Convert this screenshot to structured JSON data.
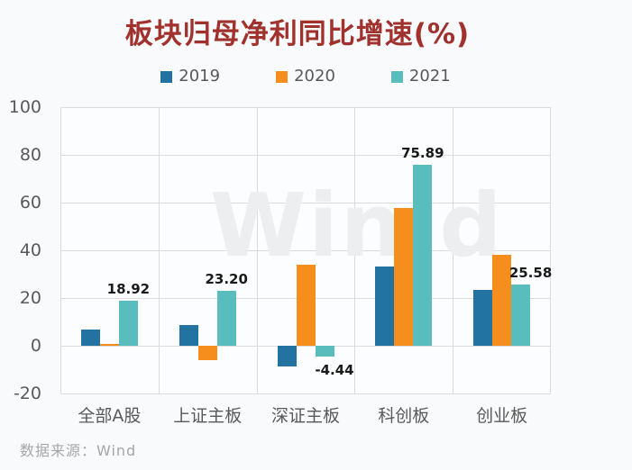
{
  "title": "板块归母净利同比增速(%)",
  "source_note": "数据来源：Wind",
  "watermark": "Win.d",
  "colors": {
    "title": "#A0312C",
    "series_2019": "#2272A2",
    "series_2020": "#F68E1E",
    "series_2021": "#5ABDBD",
    "axis_text": "#595959",
    "gridline": "#D9DBDC",
    "data_label": "#1A1A1A",
    "source_text": "#A6A6A6",
    "watermark_color": "#ECEEF0",
    "background": "#F9FAFC",
    "plot_background": "#FCFDFE"
  },
  "chart_data": {
    "type": "bar",
    "title": "板块归母净利同比增速(%)",
    "categories": [
      "全部A股",
      "上证主板",
      "深证主板",
      "科创板",
      "创业板"
    ],
    "series": [
      {
        "name": "2019",
        "values": [
          6.7,
          8.6,
          -8.8,
          33.1,
          23.4
        ]
      },
      {
        "name": "2020",
        "values": [
          0.8,
          -6.2,
          34.0,
          57.6,
          38.1
        ]
      },
      {
        "name": "2021",
        "values": [
          18.92,
          23.2,
          -4.44,
          75.89,
          25.58
        ],
        "data_labels": [
          "18.92",
          "23.20",
          "-4.44",
          "75.89",
          "25.58"
        ]
      }
    ],
    "ylim": [
      -20,
      100
    ],
    "yticks": [
      100,
      80,
      60,
      40,
      20,
      0,
      -20
    ],
    "grid": true,
    "legend_position": "top",
    "legend": [
      "2019",
      "2020",
      "2021"
    ],
    "xlabel": "",
    "ylabel": "",
    "source": "数据来源：Wind"
  }
}
